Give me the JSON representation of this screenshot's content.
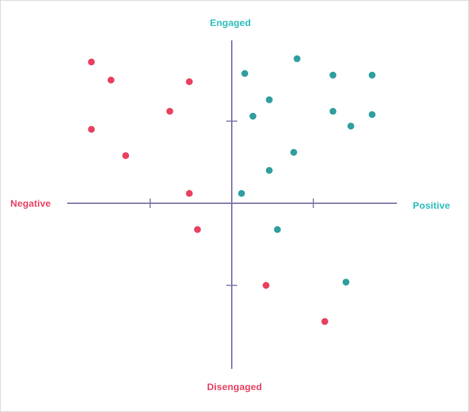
{
  "chart_data": {
    "type": "scatter",
    "title": "",
    "labels": {
      "top": "Engaged",
      "bottom": "Disengaged",
      "left": "Negative",
      "right": "Positive"
    },
    "x_range": [
      -1,
      1
    ],
    "y_range": [
      -1,
      1
    ],
    "x_ticks": [
      -0.5,
      0.5
    ],
    "y_ticks": [
      -0.5,
      0.5
    ],
    "grid": false,
    "colors": {
      "negative": "#e8405f",
      "positive": "#2f9e9e",
      "axis": "#7b72a8",
      "positive_label": "#2bbcbc",
      "negative_label": "#e8405f"
    },
    "series": [
      {
        "color_key": "negative",
        "points": [
          {
            "x": -0.86,
            "y": 0.86
          },
          {
            "x": -0.74,
            "y": 0.75
          },
          {
            "x": -0.26,
            "y": 0.74
          },
          {
            "x": -0.38,
            "y": 0.56
          },
          {
            "x": -0.86,
            "y": 0.45
          },
          {
            "x": -0.65,
            "y": 0.29
          },
          {
            "x": -0.26,
            "y": 0.06
          },
          {
            "x": -0.21,
            "y": -0.16
          },
          {
            "x": 0.21,
            "y": -0.5
          },
          {
            "x": 0.57,
            "y": -0.72
          }
        ]
      },
      {
        "color_key": "positive",
        "points": [
          {
            "x": 0.4,
            "y": 0.88
          },
          {
            "x": 0.08,
            "y": 0.79
          },
          {
            "x": 0.62,
            "y": 0.78
          },
          {
            "x": 0.86,
            "y": 0.78
          },
          {
            "x": 0.23,
            "y": 0.63
          },
          {
            "x": 0.62,
            "y": 0.56
          },
          {
            "x": 0.86,
            "y": 0.54
          },
          {
            "x": 0.13,
            "y": 0.53
          },
          {
            "x": 0.73,
            "y": 0.47
          },
          {
            "x": 0.38,
            "y": 0.31
          },
          {
            "x": 0.23,
            "y": 0.2
          },
          {
            "x": 0.06,
            "y": 0.06
          },
          {
            "x": 0.28,
            "y": -0.16
          },
          {
            "x": 0.7,
            "y": -0.48
          }
        ]
      }
    ]
  }
}
